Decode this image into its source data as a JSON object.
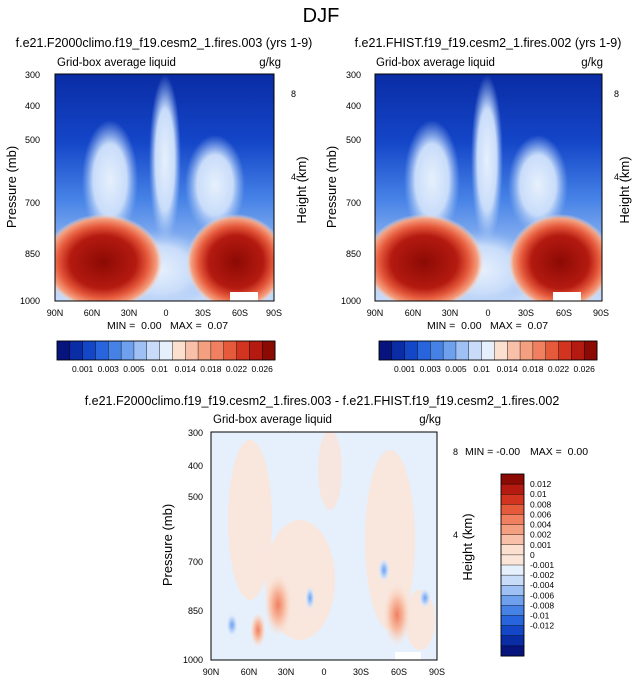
{
  "page_title": "DJF",
  "colors": {
    "blues": [
      "#08147d",
      "#0a2ca5",
      "#1446c8",
      "#2864dc",
      "#4682e6",
      "#6ea0ee",
      "#9ec0f4",
      "#c8dcfa"
    ],
    "neutral": "#e6f0fc",
    "light": "#fbe4d8",
    "reds": [
      "#fbe0d0",
      "#f8c0a8",
      "#f4a080",
      "#f08060",
      "#e65a3c",
      "#d23420",
      "#b41a10",
      "#8c0a04"
    ]
  },
  "chart_data": [
    {
      "type": "heatmap",
      "title": "f.e21.F2000climo.f19_f19.cesm2_1.fires.003 (yrs 1-9)",
      "subtitle_left": "Grid-box average liquid",
      "subtitle_right": "g/kg",
      "xlabel": "",
      "ylabel": "Pressure (mb)",
      "ylabel_right": "Height (km)",
      "x_ticks": [
        "90N",
        "60N",
        "30N",
        "0",
        "30S",
        "60S",
        "90S"
      ],
      "y_ticks": [
        "300",
        "400",
        "500",
        "700",
        "850",
        "1000"
      ],
      "y_ticks_right": [
        "8",
        "4"
      ],
      "ylim": [
        1000,
        300
      ],
      "min_label": "MIN =  0.00",
      "max_label": "MAX =  0.07",
      "colorbar": {
        "orientation": "horizontal",
        "labels": [
          "0.001",
          "0.003",
          "0.005",
          "0.01",
          "0.014",
          "0.018",
          "0.022",
          "0.026"
        ]
      }
    },
    {
      "type": "heatmap",
      "title": "f.e21.FHIST.f19_f19.cesm2_1.fires.002 (yrs 1-9)",
      "subtitle_left": "Grid-box average liquid",
      "subtitle_right": "g/kg",
      "xlabel": "",
      "ylabel": "Pressure (mb)",
      "ylabel_right": "Height (km)",
      "x_ticks": [
        "90N",
        "60N",
        "30N",
        "0",
        "30S",
        "60S",
        "90S"
      ],
      "y_ticks": [
        "300",
        "400",
        "500",
        "700",
        "850",
        "1000"
      ],
      "y_ticks_right": [
        "8",
        "4"
      ],
      "ylim": [
        1000,
        300
      ],
      "min_label": "MIN =  0.00",
      "max_label": "MAX =  0.07",
      "colorbar": {
        "orientation": "horizontal",
        "labels": [
          "0.001",
          "0.003",
          "0.005",
          "0.01",
          "0.014",
          "0.018",
          "0.022",
          "0.026"
        ]
      }
    },
    {
      "type": "heatmap",
      "title": "f.e21.F2000climo.f19_f19.cesm2_1.fires.003 - f.e21.FHIST.f19_f19.cesm2_1.fires.002",
      "subtitle_left": "Grid-box average liquid",
      "subtitle_right": "g/kg",
      "xlabel": "",
      "ylabel": "Pressure (mb)",
      "ylabel_right": "Height (km)",
      "x_ticks": [
        "90N",
        "60N",
        "30N",
        "0",
        "30S",
        "60S",
        "90S"
      ],
      "y_ticks": [
        "300",
        "400",
        "500",
        "700",
        "850",
        "1000"
      ],
      "y_ticks_right": [
        "8",
        "4"
      ],
      "ylim": [
        1000,
        300
      ],
      "min_label": "MIN = -0.00",
      "max_label": "MAX =  0.00",
      "colorbar": {
        "orientation": "vertical",
        "labels": [
          "0.012",
          "0.01",
          "0.008",
          "0.006",
          "0.004",
          "0.002",
          "0.001",
          "0",
          "-0.001",
          "-0.002",
          "-0.004",
          "-0.006",
          "-0.008",
          "-0.01",
          "-0.012"
        ]
      }
    }
  ]
}
